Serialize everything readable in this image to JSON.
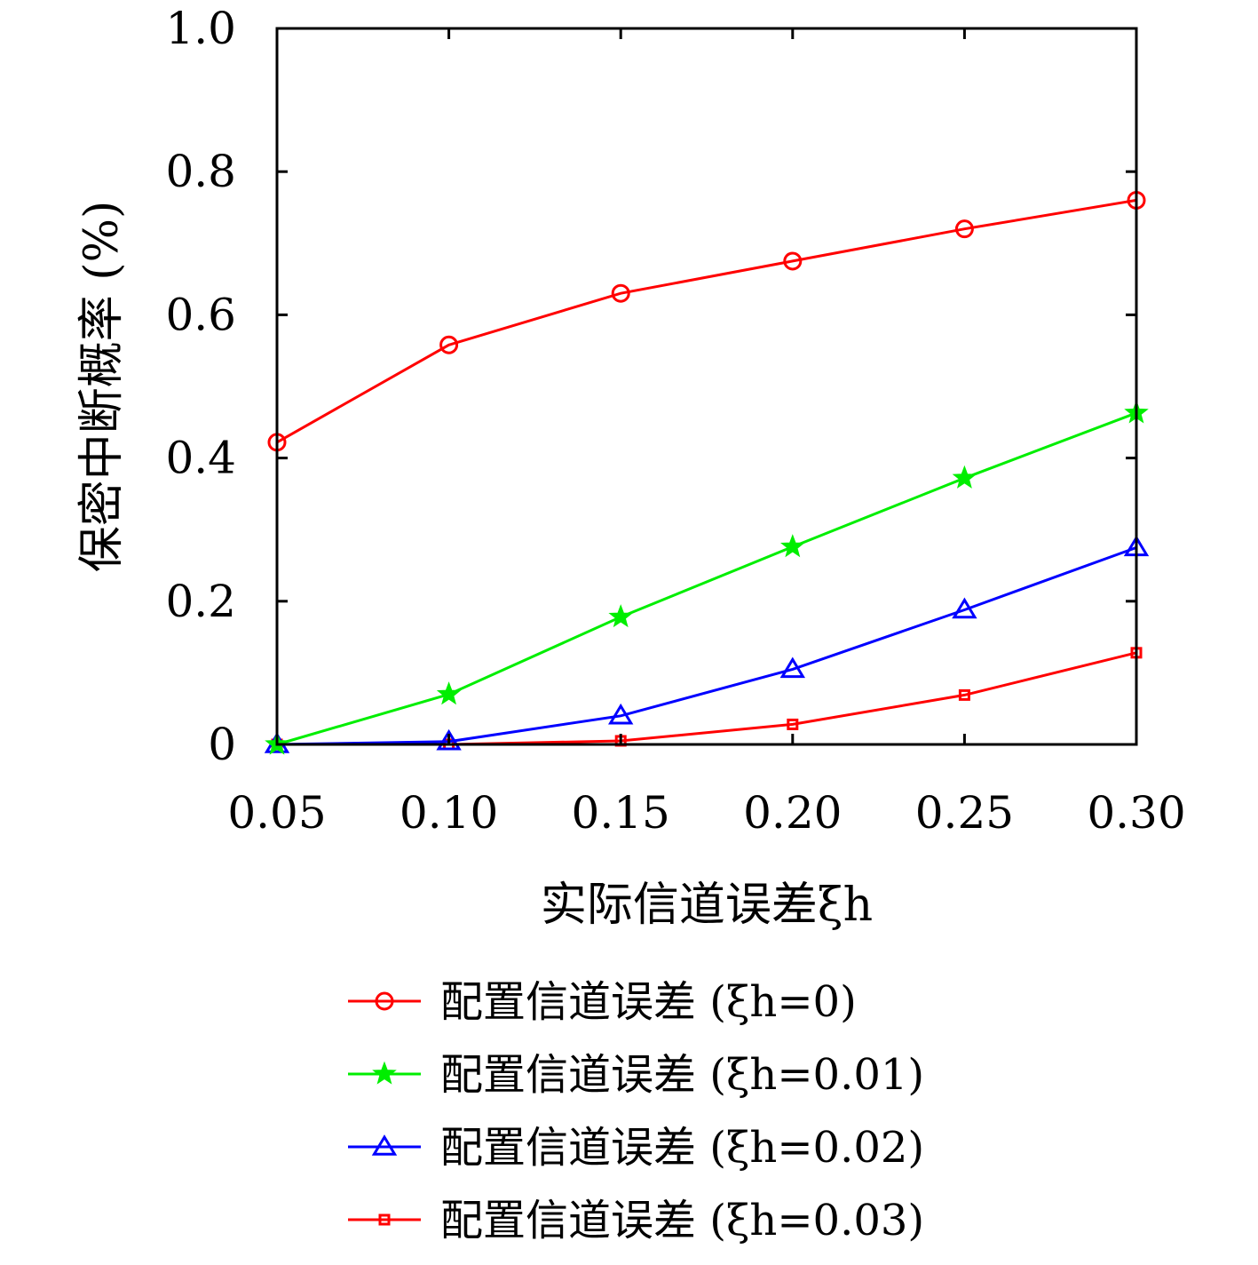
{
  "chart_data": {
    "type": "line",
    "xlabel": "实际信道误差ξh",
    "ylabel": "保密中断概率 (%)",
    "x": [
      0.05,
      0.1,
      0.15,
      0.2,
      0.25,
      0.3
    ],
    "x_tick_labels": [
      "0.05",
      "0.10",
      "0.15",
      "0.20",
      "0.25",
      "0.30"
    ],
    "y_ticks": [
      0,
      0.2,
      0.4,
      0.6,
      0.8,
      1.0
    ],
    "y_tick_labels": [
      "0",
      "0.2",
      "0.4",
      "0.6",
      "0.8",
      "1.0"
    ],
    "xlim": [
      0.05,
      0.3
    ],
    "ylim": [
      0,
      1.0
    ],
    "grid": false,
    "legend_position": "below",
    "series": [
      {
        "name": "配置信道误差 (ξh=0)",
        "legend_prefix": "配置信道误差 (",
        "legend_value": "=0)",
        "color": "#ff0000",
        "marker": "circle",
        "values": [
          0.422,
          0.558,
          0.63,
          0.675,
          0.72,
          0.76
        ]
      },
      {
        "name": "配置信道误差 (ξh=0.01)",
        "legend_prefix": "配置信道误差 (",
        "legend_value": "=0.01)",
        "color": "#00ee00",
        "marker": "star",
        "values": [
          0.0,
          0.07,
          0.178,
          0.276,
          0.372,
          0.463
        ]
      },
      {
        "name": "配置信道误差 (ξh=0.02)",
        "legend_prefix": "配置信道误差 (",
        "legend_value": "=0.02)",
        "color": "#0000ff",
        "marker": "triangle",
        "values": [
          0.0,
          0.004,
          0.04,
          0.105,
          0.188,
          0.275
        ]
      },
      {
        "name": "配置信道误差 (ξh=0.03)",
        "legend_prefix": "配置信道误差 (",
        "legend_value": "=0.03)",
        "color": "#ff0000",
        "marker": "square",
        "values": [
          0.0,
          0.0,
          0.005,
          0.028,
          0.069,
          0.128
        ]
      }
    ]
  }
}
